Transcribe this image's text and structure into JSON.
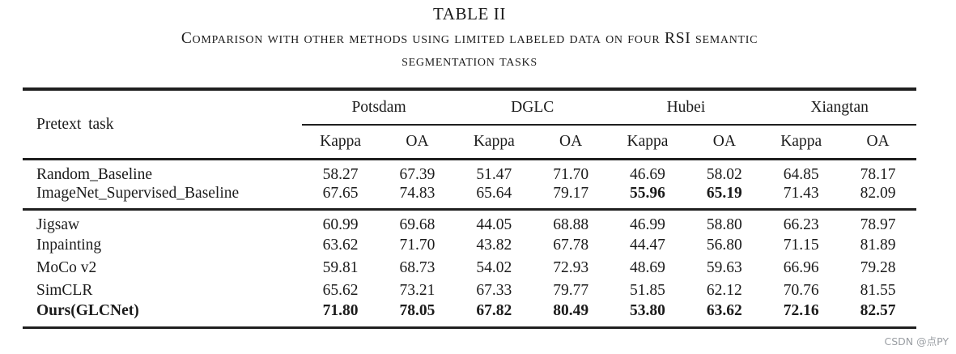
{
  "caption": {
    "title": "TABLE II",
    "subtitle_lines": [
      "Comparison with other methods using limited labeled data on four RSI semantic",
      "segmentation tasks"
    ]
  },
  "table": {
    "row_header": "Pretext task",
    "groups": [
      "Potsdam",
      "DGLC",
      "Hubei",
      "Xiangtan"
    ],
    "subcols": [
      "Kappa",
      "OA"
    ],
    "sections": [
      {
        "rows": [
          {
            "label": "Random_Baseline",
            "values": [
              "58.27",
              "67.39",
              "51.47",
              "71.70",
              "46.69",
              "58.02",
              "64.85",
              "78.17"
            ]
          },
          {
            "label": "ImageNet_Supervised_Baseline",
            "values": [
              "67.65",
              "74.83",
              "65.64",
              "79.17",
              "55.96",
              "65.19",
              "71.43",
              "82.09"
            ]
          }
        ]
      },
      {
        "rows": [
          {
            "label": "Jigsaw",
            "values": [
              "60.99",
              "69.68",
              "44.05",
              "68.88",
              "46.99",
              "58.80",
              "66.23",
              "78.97"
            ]
          },
          {
            "label": "Inpainting",
            "values": [
              "63.62",
              "71.70",
              "43.82",
              "67.78",
              "44.47",
              "56.80",
              "71.15",
              "81.89"
            ]
          },
          {
            "label": "MoCo v2",
            "values": [
              "59.81",
              "68.73",
              "54.02",
              "72.93",
              "48.69",
              "59.63",
              "66.96",
              "79.28"
            ]
          },
          {
            "label": "SimCLR",
            "values": [
              "65.62",
              "73.21",
              "67.33",
              "79.77",
              "51.85",
              "62.12",
              "70.76",
              "81.55"
            ]
          },
          {
            "label": "Ours(GLCNet)",
            "values": [
              "71.80",
              "78.05",
              "67.82",
              "80.49",
              "53.80",
              "63.62",
              "72.16",
              "82.57"
            ]
          }
        ]
      }
    ]
  },
  "watermark": {
    "text": "CSDN @点PY",
    "color": "#9b9fa4"
  }
}
